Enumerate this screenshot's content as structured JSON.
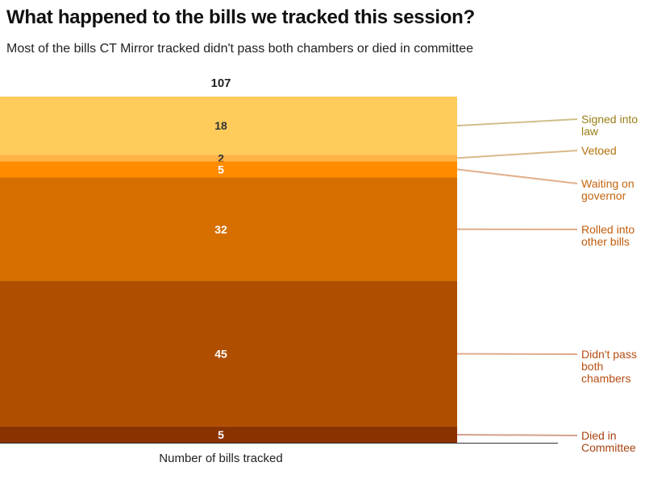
{
  "chart_data": {
    "type": "bar",
    "stacked": true,
    "title": "What happened to the bills we tracked this session?",
    "subtitle": "Most of the bills CT Mirror tracked didn't pass both chambers or died in committee",
    "xlabel": "Number of bills tracked",
    "categories": [
      "Number of bills tracked"
    ],
    "total_label": "107",
    "ylim": [
      0,
      107
    ],
    "grid": false,
    "series": [
      {
        "name": "Signed into law",
        "values": [
          18
        ],
        "color": "#ffcc5c",
        "label_color": "#9a7d14",
        "line_color": "#cfbf8a",
        "text_color": "#333333"
      },
      {
        "name": "Vetoed",
        "values": [
          2
        ],
        "color": "#ffb347",
        "label_color": "#b5700a",
        "line_color": "#d9b98a",
        "text_color": "#333333"
      },
      {
        "name": "Waiting on governor",
        "values": [
          5
        ],
        "color": "#ff8c00",
        "label_color": "#c4650f",
        "line_color": "#e2b08c",
        "text_color": "#ffffff"
      },
      {
        "name": "Rolled into other bills",
        "values": [
          32
        ],
        "color": "#d66f00",
        "label_color": "#c25c0a",
        "line_color": "#e2ad8c",
        "text_color": "#ffffff"
      },
      {
        "name": "Didn't pass both chambers",
        "values": [
          45
        ],
        "color": "#b04e00",
        "label_color": "#b84d12",
        "line_color": "#dfaa8c",
        "text_color": "#ffffff"
      },
      {
        "name": "Died in Committee",
        "values": [
          5
        ],
        "color": "#8a3200",
        "label_color": "#a8420f",
        "line_color": "#d6a08c",
        "text_color": "#ffffff"
      }
    ]
  }
}
